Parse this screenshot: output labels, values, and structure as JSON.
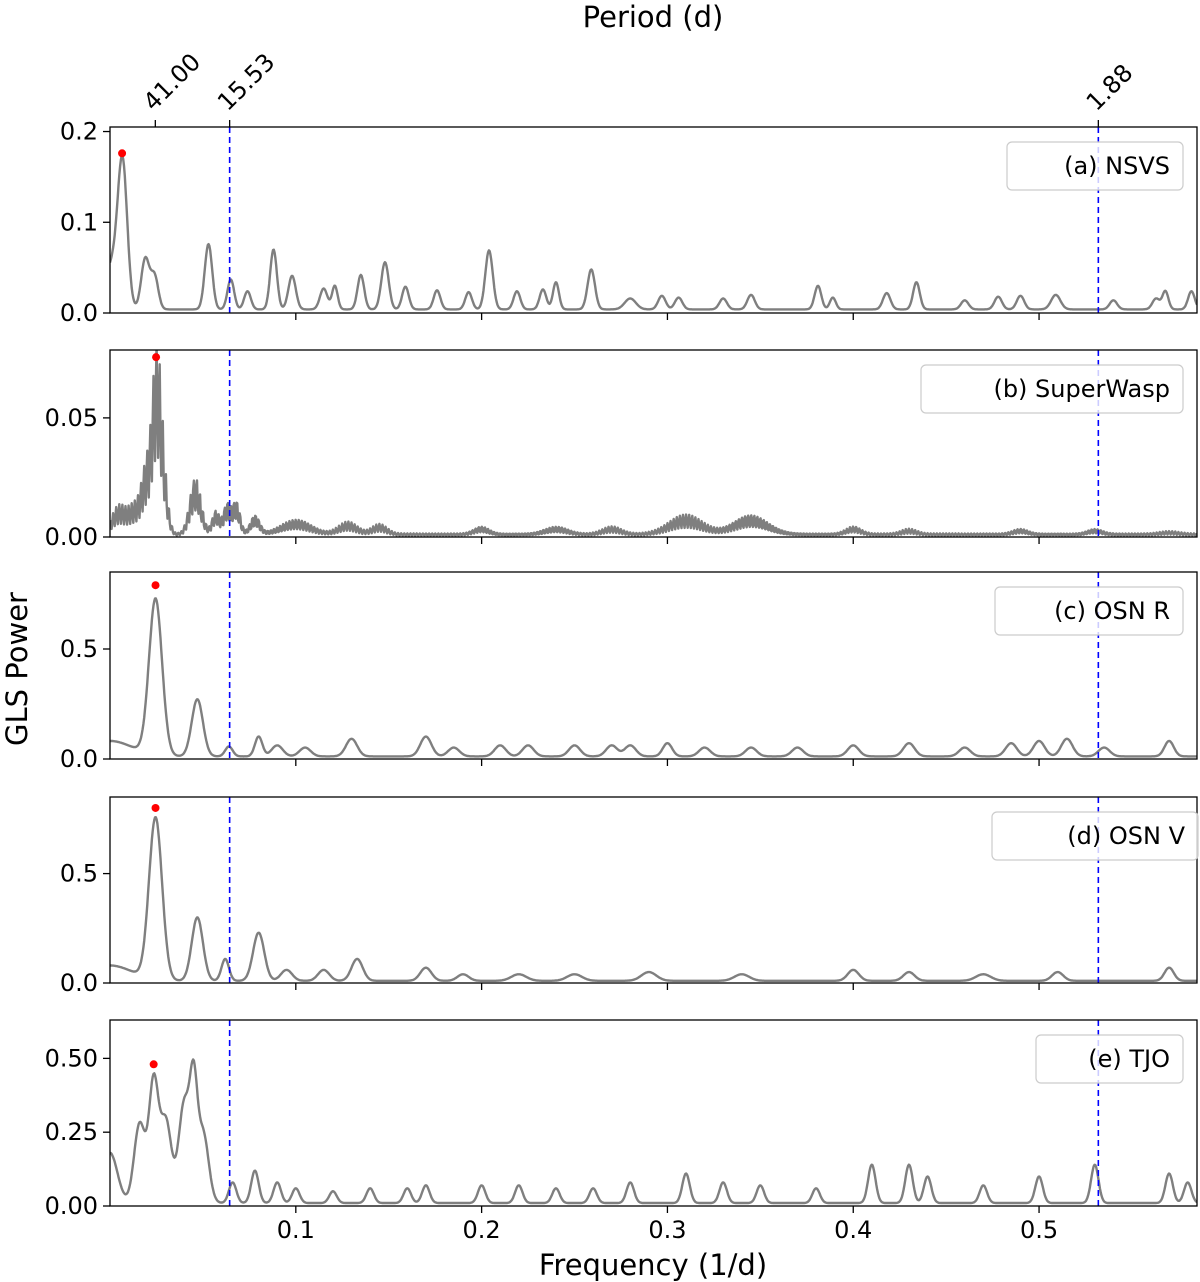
{
  "chart_data": {
    "type": "line",
    "xlabel": "Frequency (1/d)",
    "ylabel": "GLS Power",
    "top_axis_label": "Period (d)",
    "xlim": [
      0.0,
      0.585
    ],
    "x_ticks": [
      0.1,
      0.2,
      0.3,
      0.4,
      0.5
    ],
    "x_tick_labels": [
      "0.1",
      "0.2",
      "0.3",
      "0.4",
      "0.5"
    ],
    "top_ticks": [
      {
        "freq": 0.02439,
        "label": "41.00"
      },
      {
        "freq": 0.06439,
        "label": "15.53"
      },
      {
        "freq": 0.5319,
        "label": "1.88"
      }
    ],
    "vlines": [
      0.06439,
      0.5319
    ],
    "line_color": "#7f7f7f",
    "vline_color": "#0000ff",
    "peak_color": "#ff0000",
    "panels": [
      {
        "legend": "(a) NSVS",
        "ylim": [
          0,
          0.205
        ],
        "y_ticks": [
          0,
          0.1,
          0.2
        ],
        "y_tick_labels": [
          "0.0",
          "0.1",
          "0.2"
        ],
        "peak_marker": {
          "x": 0.0065,
          "y": 0.176
        },
        "baseline": 0.004,
        "peaks": [
          [
            0.0068,
            0.15,
            0.0025
          ],
          [
            0.0012,
            0.05,
            0.004
          ],
          [
            0.019,
            0.056,
            0.0022
          ],
          [
            0.024,
            0.036,
            0.002
          ],
          [
            0.053,
            0.072,
            0.002
          ],
          [
            0.065,
            0.033,
            0.0018
          ],
          [
            0.074,
            0.02,
            0.0018
          ],
          [
            0.088,
            0.066,
            0.0018
          ],
          [
            0.098,
            0.037,
            0.002
          ],
          [
            0.115,
            0.023,
            0.002
          ],
          [
            0.121,
            0.026,
            0.0015
          ],
          [
            0.135,
            0.038,
            0.0018
          ],
          [
            0.148,
            0.052,
            0.002
          ],
          [
            0.159,
            0.025,
            0.0018
          ],
          [
            0.176,
            0.021,
            0.0018
          ],
          [
            0.193,
            0.019,
            0.0018
          ],
          [
            0.204,
            0.065,
            0.002
          ],
          [
            0.219,
            0.02,
            0.0018
          ],
          [
            0.233,
            0.022,
            0.0018
          ],
          [
            0.24,
            0.03,
            0.0016
          ],
          [
            0.259,
            0.044,
            0.002
          ],
          [
            0.28,
            0.012,
            0.003
          ],
          [
            0.297,
            0.015,
            0.002
          ],
          [
            0.306,
            0.013,
            0.002
          ],
          [
            0.33,
            0.012,
            0.002
          ],
          [
            0.345,
            0.016,
            0.002
          ],
          [
            0.381,
            0.026,
            0.0018
          ],
          [
            0.389,
            0.013,
            0.0016
          ],
          [
            0.418,
            0.018,
            0.002
          ],
          [
            0.434,
            0.03,
            0.0018
          ],
          [
            0.46,
            0.01,
            0.002
          ],
          [
            0.478,
            0.014,
            0.002
          ],
          [
            0.49,
            0.015,
            0.002
          ],
          [
            0.509,
            0.016,
            0.0025
          ],
          [
            0.54,
            0.01,
            0.002
          ],
          [
            0.563,
            0.012,
            0.002
          ],
          [
            0.568,
            0.02,
            0.0016
          ],
          [
            0.582,
            0.02,
            0.0018
          ]
        ]
      },
      {
        "legend": "(b) SuperWasp",
        "ylim": [
          0,
          0.0785
        ],
        "y_ticks": [
          0,
          0.05
        ],
        "y_tick_labels": [
          "0.00",
          "0.05"
        ],
        "peak_marker": {
          "x": 0.0248,
          "y": 0.0755
        },
        "baseline": 0.0015,
        "ripple": 0.6,
        "peaks": [
          [
            0.005,
            0.012,
            0.004
          ],
          [
            0.013,
            0.01,
            0.003
          ],
          [
            0.02,
            0.03,
            0.003
          ],
          [
            0.0245,
            0.05,
            0.002
          ],
          [
            0.027,
            0.04,
            0.002
          ],
          [
            0.03,
            0.012,
            0.002
          ],
          [
            0.046,
            0.024,
            0.003
          ],
          [
            0.057,
            0.01,
            0.002
          ],
          [
            0.063,
            0.013,
            0.002
          ],
          [
            0.068,
            0.014,
            0.002
          ],
          [
            0.078,
            0.008,
            0.0025
          ],
          [
            0.1,
            0.006,
            0.008
          ],
          [
            0.128,
            0.005,
            0.005
          ],
          [
            0.145,
            0.004,
            0.004
          ],
          [
            0.2,
            0.003,
            0.004
          ],
          [
            0.24,
            0.003,
            0.006
          ],
          [
            0.27,
            0.003,
            0.005
          ],
          [
            0.31,
            0.008,
            0.009
          ],
          [
            0.345,
            0.008,
            0.009
          ],
          [
            0.4,
            0.003,
            0.004
          ],
          [
            0.43,
            0.002,
            0.004
          ],
          [
            0.49,
            0.002,
            0.004
          ],
          [
            0.53,
            0.002,
            0.004
          ],
          [
            0.57,
            0.001,
            0.005
          ]
        ]
      },
      {
        "legend": "(c) OSN R",
        "ylim": [
          0,
          0.85
        ],
        "y_ticks": [
          0,
          0.5
        ],
        "y_tick_labels": [
          "0.0",
          "0.5"
        ],
        "peak_marker": {
          "x": 0.0245,
          "y": 0.79
        },
        "baseline": 0.012,
        "peaks": [
          [
            0.0245,
            0.71,
            0.0035
          ],
          [
            0.0,
            0.07,
            0.012
          ],
          [
            0.047,
            0.26,
            0.003
          ],
          [
            0.064,
            0.045,
            0.002
          ],
          [
            0.08,
            0.09,
            0.002
          ],
          [
            0.09,
            0.05,
            0.003
          ],
          [
            0.105,
            0.04,
            0.003
          ],
          [
            0.13,
            0.08,
            0.003
          ],
          [
            0.17,
            0.09,
            0.003
          ],
          [
            0.185,
            0.04,
            0.003
          ],
          [
            0.21,
            0.05,
            0.003
          ],
          [
            0.225,
            0.05,
            0.003
          ],
          [
            0.25,
            0.05,
            0.003
          ],
          [
            0.27,
            0.05,
            0.003
          ],
          [
            0.28,
            0.05,
            0.003
          ],
          [
            0.3,
            0.06,
            0.0025
          ],
          [
            0.32,
            0.04,
            0.003
          ],
          [
            0.345,
            0.04,
            0.003
          ],
          [
            0.37,
            0.04,
            0.003
          ],
          [
            0.4,
            0.05,
            0.003
          ],
          [
            0.43,
            0.06,
            0.003
          ],
          [
            0.46,
            0.04,
            0.003
          ],
          [
            0.485,
            0.06,
            0.003
          ],
          [
            0.5,
            0.07,
            0.003
          ],
          [
            0.515,
            0.08,
            0.003
          ],
          [
            0.535,
            0.04,
            0.003
          ],
          [
            0.57,
            0.07,
            0.0025
          ]
        ]
      },
      {
        "legend": "(d) OSN V",
        "ylim": [
          0,
          0.85
        ],
        "y_ticks": [
          0,
          0.5
        ],
        "y_tick_labels": [
          "0.0",
          "0.5"
        ],
        "peak_marker": {
          "x": 0.0245,
          "y": 0.8
        },
        "baseline": 0.01,
        "peaks": [
          [
            0.0245,
            0.74,
            0.0035
          ],
          [
            0.0,
            0.07,
            0.012
          ],
          [
            0.047,
            0.29,
            0.003
          ],
          [
            0.062,
            0.1,
            0.002
          ],
          [
            0.08,
            0.22,
            0.003
          ],
          [
            0.095,
            0.05,
            0.003
          ],
          [
            0.115,
            0.05,
            0.003
          ],
          [
            0.133,
            0.1,
            0.003
          ],
          [
            0.17,
            0.06,
            0.003
          ],
          [
            0.19,
            0.03,
            0.003
          ],
          [
            0.22,
            0.03,
            0.004
          ],
          [
            0.25,
            0.03,
            0.004
          ],
          [
            0.29,
            0.04,
            0.004
          ],
          [
            0.34,
            0.03,
            0.004
          ],
          [
            0.4,
            0.05,
            0.003
          ],
          [
            0.43,
            0.04,
            0.003
          ],
          [
            0.47,
            0.03,
            0.004
          ],
          [
            0.51,
            0.04,
            0.003
          ],
          [
            0.57,
            0.06,
            0.0025
          ]
        ]
      },
      {
        "legend": "(e) TJO",
        "ylim": [
          0,
          0.63
        ],
        "y_ticks": [
          0,
          0.25,
          0.5
        ],
        "y_tick_labels": [
          "0.00",
          "0.25",
          "0.50"
        ],
        "peak_marker": {
          "x": 0.0235,
          "y": 0.48
        },
        "baseline": 0.01,
        "peaks": [
          [
            0.0235,
            0.4,
            0.0025
          ],
          [
            0.0,
            0.17,
            0.004
          ],
          [
            0.016,
            0.27,
            0.003
          ],
          [
            0.03,
            0.28,
            0.003
          ],
          [
            0.04,
            0.34,
            0.003
          ],
          [
            0.045,
            0.34,
            0.002
          ],
          [
            0.05,
            0.24,
            0.003
          ],
          [
            0.066,
            0.07,
            0.002
          ],
          [
            0.078,
            0.11,
            0.002
          ],
          [
            0.09,
            0.07,
            0.002
          ],
          [
            0.1,
            0.05,
            0.002
          ],
          [
            0.12,
            0.04,
            0.002
          ],
          [
            0.14,
            0.05,
            0.002
          ],
          [
            0.16,
            0.05,
            0.002
          ],
          [
            0.17,
            0.06,
            0.002
          ],
          [
            0.2,
            0.06,
            0.002
          ],
          [
            0.22,
            0.06,
            0.002
          ],
          [
            0.24,
            0.05,
            0.002
          ],
          [
            0.26,
            0.05,
            0.002
          ],
          [
            0.28,
            0.07,
            0.002
          ],
          [
            0.31,
            0.1,
            0.002
          ],
          [
            0.33,
            0.07,
            0.002
          ],
          [
            0.35,
            0.06,
            0.002
          ],
          [
            0.38,
            0.05,
            0.002
          ],
          [
            0.41,
            0.13,
            0.002
          ],
          [
            0.43,
            0.13,
            0.002
          ],
          [
            0.44,
            0.09,
            0.002
          ],
          [
            0.47,
            0.06,
            0.002
          ],
          [
            0.5,
            0.09,
            0.002
          ],
          [
            0.53,
            0.13,
            0.002
          ],
          [
            0.57,
            0.1,
            0.002
          ],
          [
            0.58,
            0.07,
            0.002
          ]
        ]
      }
    ]
  }
}
